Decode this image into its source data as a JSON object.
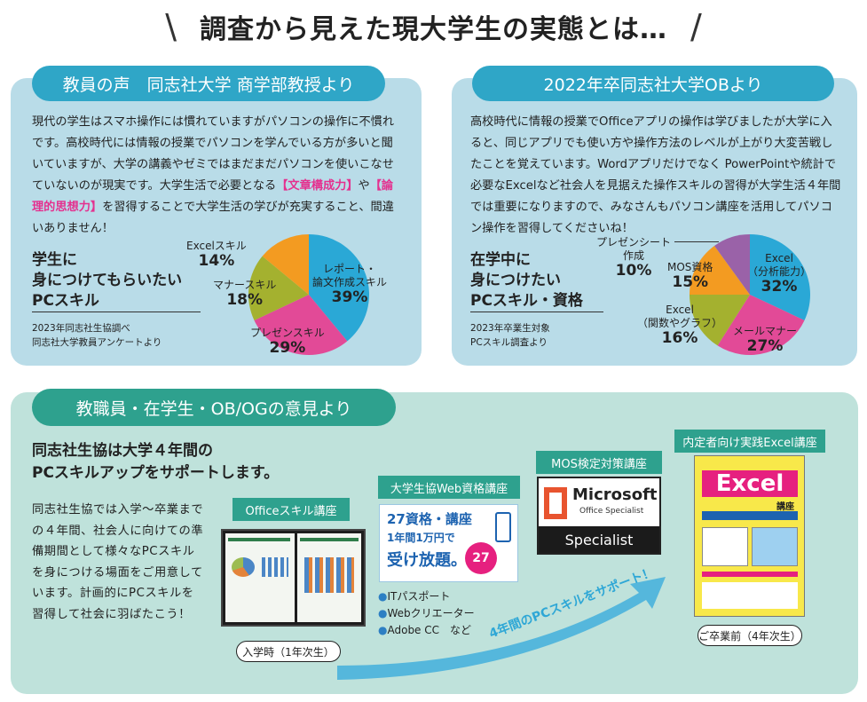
{
  "header": {
    "slash_left": "\\",
    "title": "調査から見えた現大学生の実態とは…",
    "slash_right": "/"
  },
  "left_panel": {
    "pill": "教員の声　同志社大学 商学部教授より",
    "paragraph": {
      "part1": "現代の学生はスマホ操作には慣れていますがパソコンの操作に不慣れです。高校時代には情報の授業でパソコンを学んでいる方が多いと聞いていますが、大学の講義やゼミではまだまだパソコンを使いこなせていないのが現実です。大学生活で必要となる",
      "hl1": "【文章構成力】",
      "part2": "や",
      "hl2": "【論理的思想力】",
      "part3": "を習得することで大学生活の学びが充実すること、間違いありません！"
    },
    "heading": [
      "学生に",
      "身につけてもらいたい",
      "PCスキル"
    ],
    "source": [
      "2023年同志社生協調べ",
      "同志社大学教員アンケートより"
    ],
    "pie": {
      "slices": [
        {
          "label": "レポート・\n論文作成スキル",
          "pct": "39%",
          "value": 39,
          "color": "#2aa8d6"
        },
        {
          "label": "プレゼンスキル",
          "pct": "29%",
          "value": 29,
          "color": "#e24a97"
        },
        {
          "label": "マナースキル",
          "pct": "18%",
          "value": 18,
          "color": "#a4b12f"
        },
        {
          "label": "Excelスキル",
          "pct": "14%",
          "value": 14,
          "color": "#f39b21"
        }
      ]
    }
  },
  "right_panel": {
    "pill": "2022年卒同志社大学OBより",
    "paragraph": "高校時代に情報の授業でOfficeアプリの操作は学びましたが大学に入ると、同じアプリでも使い方や操作方法のレベルが上がり大変苦戦したことを覚えています。Wordアプリだけでなく PowerPointや統計で必要なExcelなど社会人を見据えた操作スキルの習得が大学生活４年間では重要になりますので、みなさんもパソコン講座を活用してパソコン操作を習得してくださいね！",
    "heading": [
      "在学中に",
      "身につけたい",
      "PCスキル・資格"
    ],
    "source": [
      "2023年卒業生対象",
      "PCスキル調査より"
    ],
    "pie": {
      "slices": [
        {
          "label": "Excel\n（分析能力）",
          "pct": "32%",
          "value": 32,
          "color": "#2aa8d6"
        },
        {
          "label": "メールマナー",
          "pct": "27%",
          "value": 27,
          "color": "#e24a97"
        },
        {
          "label": "Excel\n（関数やグラフ）",
          "pct": "16%",
          "value": 16,
          "color": "#a4b12f"
        },
        {
          "label": "MOS資格",
          "pct": "15%",
          "value": 15,
          "color": "#f39b21"
        },
        {
          "label": "プレゼンシート\n作成",
          "pct": "10%",
          "value": 10,
          "color": "#9a62a8"
        }
      ]
    }
  },
  "bottom_panel": {
    "pill": "教職員・在学生・OB/OGの意見より",
    "heading": [
      "同志社生協は大学４年間の",
      "PCスキルアップをサポートします。"
    ],
    "paragraph": "同志社生協では入学〜卒業までの４年間、社会人に向けての準備期間として様々なPCスキルを身につける場面をご用意しています。計画的にPCスキルを習得して社会に羽ばたこう！",
    "course1": {
      "tag": "Officeスキル講座",
      "stage": "入学時（1年次生）"
    },
    "course2": {
      "tag": "大学生協Web資格講座",
      "card_line1": "27資格・講座",
      "card_line2": "1年間1万円で",
      "card_line3": "受け放題。",
      "badge": "27",
      "bullets": [
        "ITパスポート",
        "Webクリエーター",
        "Adobe CC　など"
      ]
    },
    "course3": {
      "tag": "MOS検定対策講座",
      "brand": "Microsoft",
      "sub": "Office Specialist",
      "bar": "Specialist"
    },
    "course4": {
      "tag": "内定者向け実践Excel講座",
      "poster_title": "Excel",
      "poster_sub": "講座",
      "stage": "ご卒業前（4年次生）"
    },
    "arrow_label": "4年間のPCスキルをサポート！"
  }
}
